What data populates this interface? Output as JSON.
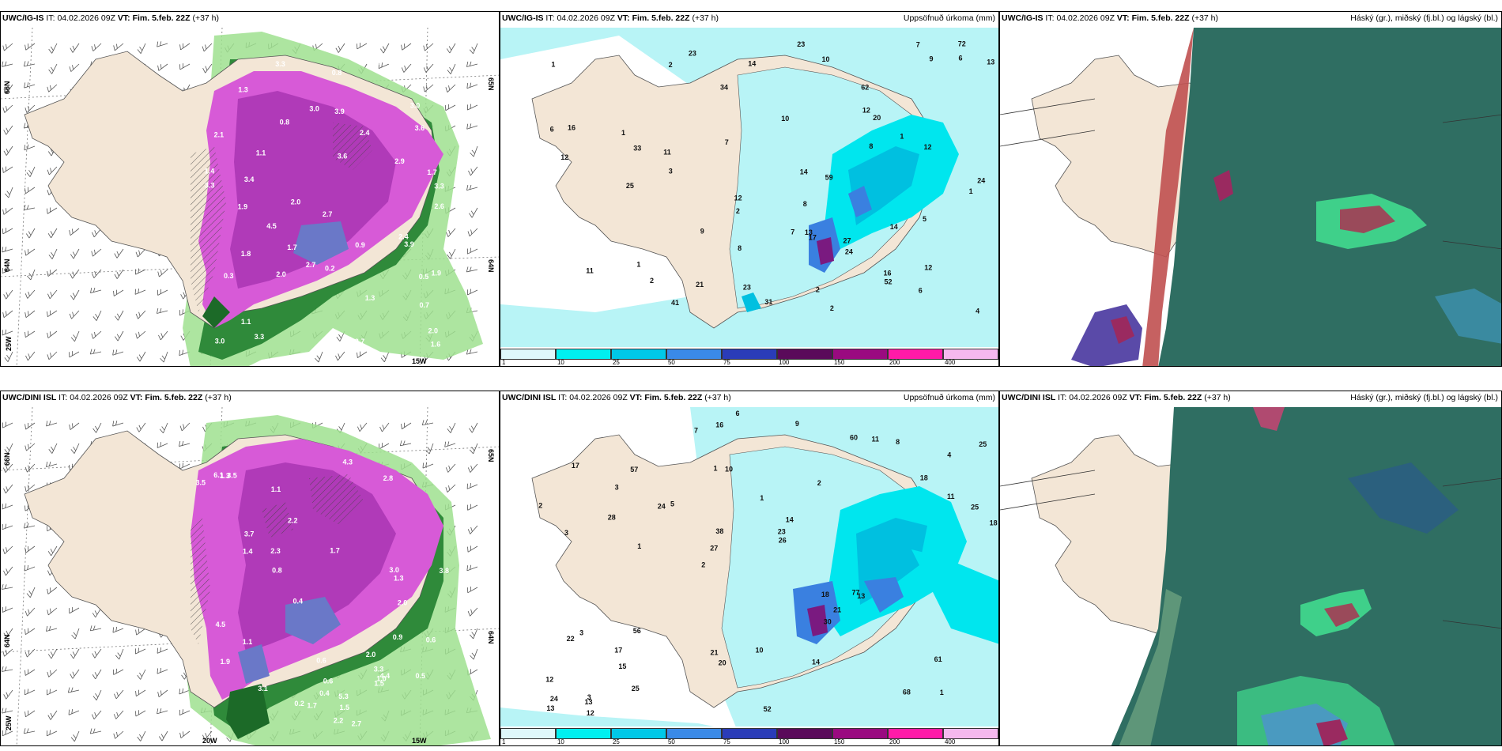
{
  "panels": {
    "r1c1": {
      "model": "UWC/IG-IS",
      "it_label": "IT:",
      "it": "04.02.2026 09Z",
      "vt_label": "VT:",
      "vt": "Fim. 5.feb. 22Z",
      "lead": "(+37 h)"
    },
    "r1c2": {
      "model": "UWC/IG-IS",
      "it_label": "IT:",
      "it": "04.02.2026 09Z",
      "vt_label": "VT:",
      "vt": "Fim. 5.feb. 22Z",
      "lead": "(+37 h)",
      "right": "Uppsöfnuð úrkoma (mm)"
    },
    "r1c3": {
      "model": "UWC/IG-IS",
      "it_label": "IT:",
      "it": "04.02.2026 09Z",
      "vt_label": "VT:",
      "vt": "Fim. 5.feb. 22Z",
      "lead": "(+37 h)",
      "right": "Háský (gr.), miðský (fj.bl.) og lágský (bl.)"
    },
    "r2c1": {
      "model": "UWC/DINI ISL",
      "it_label": "IT:",
      "it": "04.02.2026 09Z",
      "vt_label": "VT:",
      "vt": "Fim. 5.feb. 22Z",
      "lead": "(+37 h)"
    },
    "r2c2": {
      "model": "UWC/DINI ISL",
      "it_label": "IT:",
      "it": "04.02.2026 09Z",
      "vt_label": "VT:",
      "vt": "Fim. 5.feb. 22Z",
      "lead": "(+37 h)",
      "right": "Uppsöfnuð úrkoma (mm)"
    },
    "r2c3": {
      "model": "UWC/DINI ISL",
      "it_label": "IT:",
      "it": "04.02.2026 09Z",
      "vt_label": "VT:",
      "vt": "Fim. 5.feb. 22Z",
      "lead": "(+37 h)",
      "right": "Háský (gr.), miðský (fj.bl.) og lágský (bl.)"
    }
  },
  "axis": {
    "lat66": "66N",
    "lat64": "64N",
    "lon25": "25W",
    "lon20": "20W",
    "lon15": "15W",
    "lat65e": "65N",
    "lat64e": "64N"
  },
  "colorbar": {
    "ticks": [
      "1",
      "10",
      "25",
      "50",
      "75",
      "100",
      "150",
      "200",
      "400"
    ],
    "colors": [
      "#dff8fb",
      "#00f0f0",
      "#00c8e8",
      "#3a8ae8",
      "#2a3cb8",
      "#5a0a5a",
      "#9a0a80",
      "#ff1aa8",
      "#f5b8ee"
    ]
  },
  "snow_labels": {
    "top": [
      "0.8",
      "1.7",
      "2.4",
      "3.3",
      "2.0",
      "1.9",
      "1.7",
      "3.2",
      "0.5",
      "3.0",
      "1.1",
      "3.9",
      "2.9",
      "2.0",
      "0.3",
      "2.7",
      "4.5",
      "1.4",
      "3.3",
      "3.0",
      "2.0",
      "3.9",
      "1.1",
      "1.8",
      "3.6",
      "2.8",
      "3.0",
      "1.3",
      "3.1",
      "1.0",
      "3.3",
      "1.6",
      "1.9",
      "0.8",
      "3.4",
      "3.3",
      "2.6",
      "0.9",
      "3.6",
      "2.4",
      "2.7",
      "2.1",
      "2.7",
      "0.2",
      "0.7",
      "1.3"
    ],
    "bottom": [
      "0.2",
      "0.6",
      "1.7",
      "3.5",
      "3.8",
      "1.9",
      "0.4",
      "4.5",
      "3.0",
      "3.7",
      "1.1",
      "0.5",
      "1.7",
      "2.7",
      "2.8",
      "1.5",
      "3.3",
      "1.0",
      "0.6",
      "1.3",
      "3.5",
      "2.0",
      "1.4",
      "0.8",
      "5.3",
      "3.1",
      "4.3",
      "2.2",
      "1.1",
      "2.3",
      "6.1",
      "2.0",
      "0.9",
      "0.6",
      "1.5",
      "2.2",
      "1.3",
      "4.4",
      "0.4"
    ]
  },
  "precip_labels": {
    "top": [
      "2",
      "2",
      "1",
      "1",
      "1",
      "2",
      "1",
      "3",
      "2",
      "2",
      "11",
      "6",
      "12",
      "13",
      "8",
      "7",
      "12",
      "9",
      "14",
      "12",
      "16",
      "17",
      "41",
      "52",
      "59",
      "20",
      "25",
      "33",
      "31",
      "34",
      "24",
      "72",
      "62",
      "21",
      "23",
      "23",
      "23",
      "16",
      "24",
      "27",
      "14",
      "14",
      "13",
      "12",
      "10",
      "5",
      "7",
      "8",
      "8",
      "6",
      "9",
      "10",
      "11",
      "12",
      "1",
      "4",
      "6",
      "7"
    ],
    "bottom": [
      "1",
      "3",
      "4",
      "2",
      "2",
      "3",
      "1",
      "1",
      "3",
      "5",
      "12",
      "15",
      "10",
      "14",
      "13",
      "17",
      "16",
      "18",
      "18",
      "11",
      "27",
      "21",
      "38",
      "57",
      "60",
      "56",
      "68",
      "61",
      "77",
      "52",
      "24",
      "28",
      "30",
      "25",
      "25",
      "23",
      "24",
      "20",
      "26",
      "22",
      "18",
      "25",
      "21",
      "14",
      "17",
      "12",
      "13",
      "10",
      "8",
      "6",
      "1",
      "2",
      "3",
      "11",
      "13",
      "9",
      "7"
    ]
  }
}
